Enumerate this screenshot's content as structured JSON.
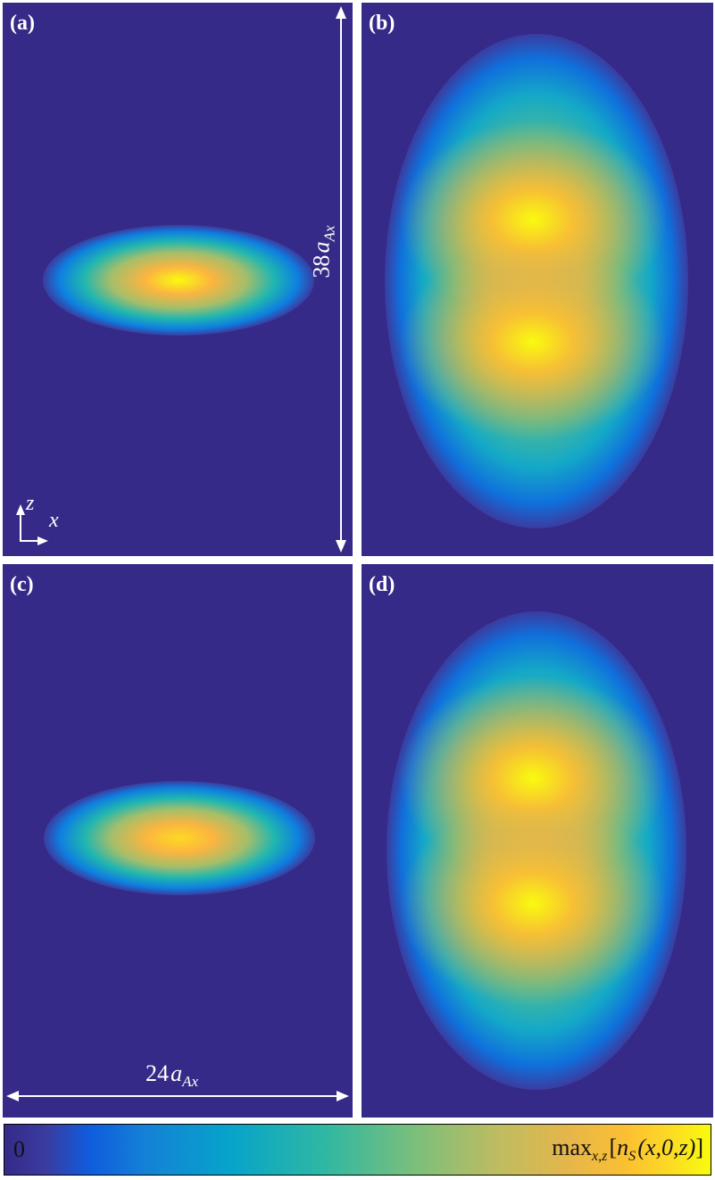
{
  "panels": {
    "a": {
      "label": "(a)"
    },
    "b": {
      "label": "(b)"
    },
    "c": {
      "label": "(c)"
    },
    "d": {
      "label": "(d)"
    }
  },
  "annotations": {
    "height_value": "38",
    "height_unit_base": "a",
    "height_unit_sub": "Ax",
    "width_value": "24",
    "width_unit_base": "a",
    "width_unit_sub": "Ax",
    "axis_z": "z",
    "axis_x": "x"
  },
  "colorbar": {
    "min_label": "0",
    "max_prefix": "max",
    "max_prefix_sub": "x,z",
    "max_bracket_open": "[",
    "max_n": "n",
    "max_n_sub": "S",
    "max_args": "(x,0,z)",
    "max_bracket_close": "]"
  },
  "colors": {
    "background": "#352a87",
    "peak": "#f9fb0e",
    "orange": "#fbb540",
    "cyan": "#1fb5b0",
    "blue": "#0f5cdd"
  }
}
